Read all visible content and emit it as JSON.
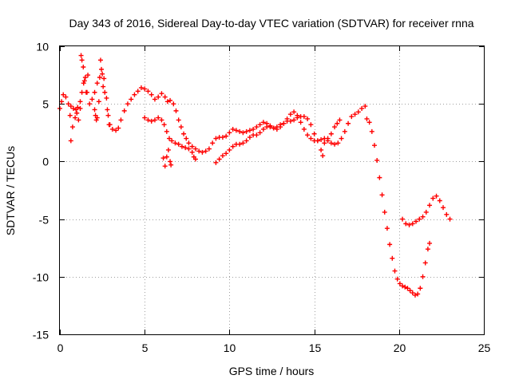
{
  "chart_data": {
    "type": "scatter",
    "title": "Day 343 of 2016, Sidereal Day-to-day VTEC variation (SDTVAR) for receiver rnna",
    "xlabel": "GPS time / hours",
    "ylabel": "SDTVAR / TECUs",
    "xlim": [
      0,
      25
    ],
    "ylim": [
      -15,
      10
    ],
    "xticks": [
      0,
      5,
      10,
      15,
      20,
      25
    ],
    "yticks": [
      -15,
      -10,
      -5,
      0,
      5,
      10
    ],
    "xtick_labels": [
      "0",
      "5",
      "10",
      "15",
      "20",
      "25"
    ],
    "ytick_labels": [
      "-15",
      "-10",
      "-5",
      "0",
      "5",
      "10"
    ],
    "grid": true,
    "marker": "+",
    "series": [
      {
        "name": "track-1",
        "color": "#ff0000",
        "points": [
          [
            0.0,
            4.6
          ],
          [
            0.1,
            5.2
          ],
          [
            0.2,
            5.8
          ],
          [
            0.35,
            5.6
          ],
          [
            0.5,
            5.0
          ],
          [
            0.65,
            4.8
          ],
          [
            0.8,
            4.6
          ],
          [
            0.95,
            4.5
          ],
          [
            1.05,
            4.7
          ],
          [
            1.2,
            5.2
          ],
          [
            1.3,
            6.0
          ],
          [
            1.4,
            6.8
          ],
          [
            1.5,
            7.3
          ],
          [
            1.6,
            6.0
          ],
          [
            1.75,
            5.0
          ],
          [
            1.9,
            5.4
          ],
          [
            2.05,
            6.0
          ],
          [
            2.2,
            6.8
          ],
          [
            2.35,
            7.3
          ],
          [
            2.5,
            7.6
          ],
          [
            2.6,
            7.2
          ],
          [
            2.75,
            5.5
          ],
          [
            2.85,
            4.0
          ],
          [
            2.95,
            3.2
          ],
          [
            3.1,
            2.8
          ],
          [
            3.3,
            2.7
          ],
          [
            3.45,
            2.9
          ],
          [
            3.6,
            3.6
          ],
          [
            3.8,
            4.4
          ],
          [
            4.0,
            5.0
          ],
          [
            4.2,
            5.4
          ],
          [
            4.4,
            5.8
          ],
          [
            4.6,
            6.1
          ],
          [
            4.8,
            6.4
          ],
          [
            5.0,
            6.3
          ],
          [
            5.2,
            6.1
          ],
          [
            5.4,
            5.8
          ],
          [
            5.6,
            5.4
          ],
          [
            5.8,
            5.6
          ],
          [
            6.0,
            5.9
          ],
          [
            6.2,
            5.6
          ],
          [
            6.35,
            5.2
          ],
          [
            6.5,
            5.3
          ],
          [
            6.7,
            5.0
          ],
          [
            6.85,
            4.4
          ],
          [
            7.0,
            3.6
          ],
          [
            7.15,
            3.0
          ],
          [
            7.3,
            2.4
          ],
          [
            7.45,
            2.0
          ],
          [
            7.6,
            1.6
          ],
          [
            7.8,
            1.3
          ],
          [
            8.0,
            1.1
          ],
          [
            8.2,
            0.9
          ],
          [
            8.4,
            0.8
          ],
          [
            8.6,
            0.9
          ],
          [
            8.8,
            1.1
          ],
          [
            9.0,
            1.6
          ],
          [
            9.2,
            2.0
          ],
          [
            9.4,
            2.1
          ],
          [
            9.6,
            2.1
          ],
          [
            9.8,
            2.2
          ],
          [
            10.0,
            2.5
          ],
          [
            10.2,
            2.8
          ],
          [
            10.4,
            2.7
          ],
          [
            10.6,
            2.6
          ],
          [
            10.8,
            2.5
          ],
          [
            11.0,
            2.6
          ],
          [
            11.2,
            2.7
          ],
          [
            11.4,
            2.8
          ],
          [
            11.6,
            3.0
          ],
          [
            11.8,
            3.2
          ],
          [
            12.0,
            3.4
          ],
          [
            12.2,
            3.3
          ],
          [
            12.4,
            3.1
          ],
          [
            12.6,
            2.9
          ],
          [
            12.8,
            2.8
          ],
          [
            13.0,
            3.0
          ],
          [
            13.2,
            3.3
          ],
          [
            13.4,
            3.7
          ],
          [
            13.6,
            4.1
          ],
          [
            13.8,
            4.3
          ],
          [
            14.0,
            4.0
          ],
          [
            14.2,
            3.4
          ],
          [
            14.4,
            2.8
          ],
          [
            14.6,
            2.3
          ],
          [
            14.8,
            2.0
          ],
          [
            15.0,
            1.8
          ],
          [
            15.2,
            1.8
          ],
          [
            15.4,
            1.9
          ],
          [
            15.6,
            2.0
          ],
          [
            15.8,
            1.8
          ],
          [
            16.0,
            1.6
          ],
          [
            16.2,
            1.5
          ],
          [
            16.4,
            1.6
          ],
          [
            16.6,
            2.0
          ],
          [
            16.8,
            2.6
          ],
          [
            17.0,
            3.3
          ],
          [
            17.2,
            3.9
          ],
          [
            17.4,
            4.1
          ],
          [
            17.6,
            4.3
          ],
          [
            17.8,
            4.6
          ],
          [
            18.0,
            4.8
          ]
        ]
      },
      {
        "name": "track-2",
        "color": "#ff0000",
        "points": [
          [
            0.6,
            4.0
          ],
          [
            0.65,
            1.8
          ],
          [
            0.75,
            3.0
          ],
          [
            0.9,
            3.8
          ],
          [
            1.0,
            4.2
          ],
          [
            1.1,
            3.6
          ],
          [
            1.2,
            4.6
          ],
          [
            1.25,
            9.2
          ],
          [
            1.3,
            8.8
          ],
          [
            1.38,
            8.2
          ],
          [
            1.45,
            7.0
          ],
          [
            1.55,
            6.0
          ],
          [
            1.65,
            7.5
          ],
          [
            2.05,
            4.5
          ],
          [
            2.1,
            4.0
          ],
          [
            2.15,
            3.6
          ],
          [
            2.2,
            3.8
          ],
          [
            2.3,
            5.2
          ],
          [
            2.4,
            8.8
          ],
          [
            2.45,
            8.0
          ],
          [
            2.55,
            6.5
          ],
          [
            2.65,
            6.0
          ],
          [
            2.8,
            4.5
          ],
          [
            2.9,
            3.2
          ],
          [
            5.0,
            3.8
          ],
          [
            5.2,
            3.6
          ],
          [
            5.4,
            3.5
          ],
          [
            5.6,
            3.6
          ],
          [
            5.8,
            3.8
          ],
          [
            6.0,
            3.6
          ],
          [
            6.15,
            3.2
          ],
          [
            6.3,
            2.6
          ],
          [
            6.45,
            2.0
          ],
          [
            6.6,
            1.8
          ],
          [
            6.8,
            1.6
          ],
          [
            7.0,
            1.5
          ],
          [
            7.2,
            1.3
          ],
          [
            7.4,
            1.2
          ],
          [
            7.6,
            1.1
          ],
          [
            7.8,
            0.8
          ],
          [
            7.9,
            0.4
          ],
          [
            8.0,
            0.2
          ],
          [
            6.1,
            0.3
          ],
          [
            6.2,
            -0.4
          ],
          [
            6.3,
            0.4
          ],
          [
            6.4,
            1.0
          ],
          [
            6.5,
            0.0
          ],
          [
            6.55,
            -0.3
          ],
          [
            9.2,
            -0.1
          ],
          [
            9.4,
            0.2
          ],
          [
            9.6,
            0.5
          ],
          [
            9.8,
            0.7
          ],
          [
            10.0,
            1.0
          ],
          [
            10.2,
            1.3
          ],
          [
            10.4,
            1.5
          ],
          [
            10.6,
            1.5
          ],
          [
            10.8,
            1.6
          ],
          [
            11.0,
            1.8
          ],
          [
            11.2,
            2.1
          ],
          [
            11.4,
            2.3
          ],
          [
            11.6,
            2.3
          ],
          [
            11.8,
            2.5
          ],
          [
            12.0,
            2.8
          ],
          [
            12.2,
            3.0
          ],
          [
            12.4,
            3.0
          ],
          [
            12.6,
            2.9
          ],
          [
            12.8,
            3.0
          ],
          [
            13.0,
            3.2
          ],
          [
            13.2,
            3.3
          ],
          [
            13.4,
            3.5
          ],
          [
            13.6,
            3.5
          ],
          [
            13.8,
            3.6
          ],
          [
            14.0,
            3.8
          ],
          [
            14.2,
            3.9
          ],
          [
            14.4,
            3.9
          ],
          [
            14.6,
            3.7
          ],
          [
            14.8,
            3.2
          ],
          [
            15.0,
            2.4
          ],
          [
            15.2,
            1.8
          ],
          [
            15.4,
            1.0
          ],
          [
            15.5,
            0.5
          ],
          [
            15.6,
            1.6
          ],
          [
            15.8,
            2.0
          ],
          [
            16.0,
            2.4
          ],
          [
            16.2,
            3.0
          ],
          [
            16.35,
            3.3
          ],
          [
            16.5,
            3.6
          ],
          [
            18.1,
            3.7
          ],
          [
            18.25,
            3.4
          ],
          [
            18.4,
            2.6
          ],
          [
            18.55,
            1.4
          ],
          [
            18.7,
            0.1
          ],
          [
            18.85,
            -1.4
          ],
          [
            19.0,
            -2.9
          ],
          [
            19.15,
            -4.4
          ],
          [
            19.3,
            -5.8
          ],
          [
            19.45,
            -7.2
          ],
          [
            19.6,
            -8.4
          ],
          [
            19.75,
            -9.5
          ],
          [
            19.9,
            -10.2
          ],
          [
            20.05,
            -10.6
          ],
          [
            20.2,
            -10.8
          ],
          [
            20.35,
            -10.9
          ],
          [
            20.5,
            -11.0
          ],
          [
            20.65,
            -11.2
          ],
          [
            20.8,
            -11.4
          ],
          [
            20.95,
            -11.6
          ],
          [
            21.1,
            -11.5
          ],
          [
            21.25,
            -11.0
          ],
          [
            21.4,
            -10.0
          ],
          [
            21.55,
            -8.8
          ],
          [
            21.7,
            -7.6
          ],
          [
            21.8,
            -7.1
          ],
          [
            20.2,
            -5.0
          ],
          [
            20.4,
            -5.4
          ],
          [
            20.6,
            -5.5
          ],
          [
            20.8,
            -5.4
          ],
          [
            21.0,
            -5.2
          ],
          [
            21.2,
            -5.0
          ],
          [
            21.4,
            -4.8
          ],
          [
            21.6,
            -4.4
          ],
          [
            21.8,
            -3.8
          ],
          [
            22.0,
            -3.2
          ],
          [
            22.2,
            -3.0
          ],
          [
            22.4,
            -3.4
          ],
          [
            22.6,
            -4.0
          ],
          [
            22.8,
            -4.6
          ],
          [
            23.0,
            -5.0
          ]
        ]
      }
    ]
  }
}
